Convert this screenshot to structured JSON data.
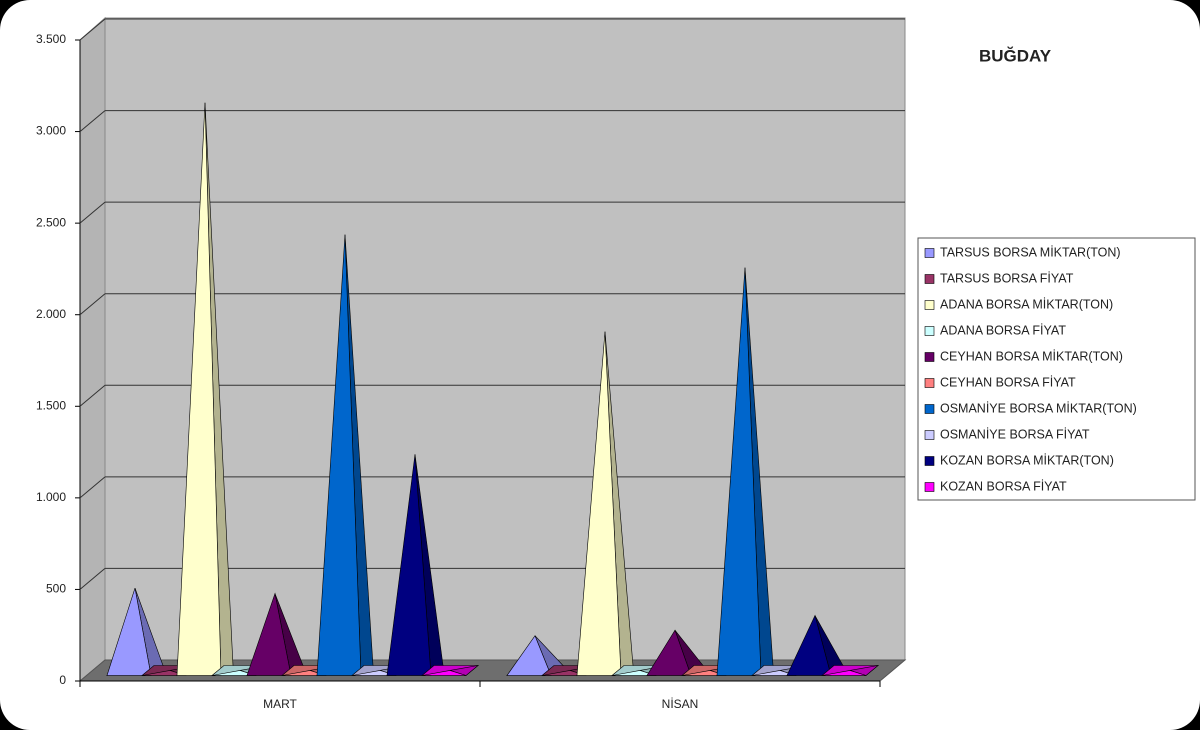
{
  "chart_data": {
    "type": "pyramid3d",
    "title": "BUĞDAY",
    "categories": [
      "MART",
      "NİSAN"
    ],
    "series": [
      {
        "name": "TARSUS BORSA MİKTAR(TON)",
        "color": "#9999ff",
        "values": [
          450,
          190
        ]
      },
      {
        "name": "TARSUS BORSA FİYAT",
        "color": "#993366",
        "values": [
          0.5,
          0.5
        ]
      },
      {
        "name": "ADANA BORSA MİKTAR(TON)",
        "color": "#ffffcc",
        "values": [
          3100,
          1850
        ]
      },
      {
        "name": "ADANA BORSA FİYAT",
        "color": "#ccffff",
        "values": [
          0.5,
          0.5
        ]
      },
      {
        "name": "CEYHAN BORSA MİKTAR(TON)",
        "color": "#660066",
        "values": [
          420,
          220
        ]
      },
      {
        "name": "CEYHAN BORSA FİYAT",
        "color": "#ff8080",
        "values": [
          0.5,
          0.5
        ]
      },
      {
        "name": "OSMANİYE BORSA MİKTAR(TON)",
        "color": "#0066cc",
        "values": [
          2380,
          2200
        ]
      },
      {
        "name": "OSMANİYE BORSA FİYAT",
        "color": "#ccccff",
        "values": [
          0.5,
          0.5
        ]
      },
      {
        "name": "KOZAN BORSA MİKTAR(TON)",
        "color": "#000080",
        "values": [
          1180,
          300
        ]
      },
      {
        "name": "KOZAN BORSA FİYAT",
        "color": "#ff00ff",
        "values": [
          0.5,
          0.5
        ]
      }
    ],
    "ylim": [
      0,
      3500
    ],
    "yticks": [
      0,
      500,
      {
        "value": 1000,
        "label": "1.000"
      },
      {
        "value": 1500,
        "label": "1.500"
      },
      {
        "value": 2000,
        "label": "2.000"
      },
      {
        "value": 2500,
        "label": "2.500"
      },
      {
        "value": 3000,
        "label": "3.000"
      },
      {
        "value": 3500,
        "label": "3.500"
      }
    ],
    "grid": true
  }
}
